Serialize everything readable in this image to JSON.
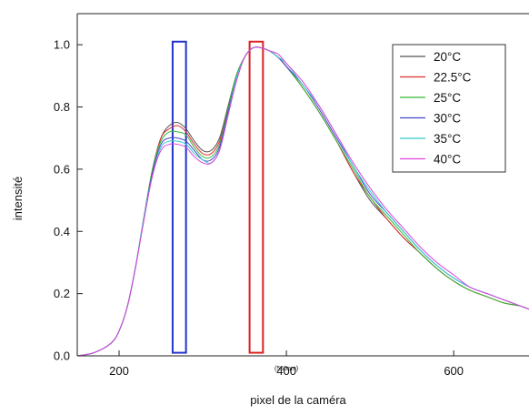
{
  "chart_data": {
    "type": "line",
    "title": "",
    "xlabel": "pixel de la caméra",
    "ylabel": "intensité",
    "xlim": [
      150,
      690
    ],
    "ylim": [
      0,
      1.1
    ],
    "xticks": [
      200,
      400,
      600
    ],
    "xtick_labels": [
      "200",
      "400",
      "600"
    ],
    "yticks": [
      0.0,
      0.2,
      0.4,
      0.6,
      0.8,
      1.0
    ],
    "ytick_labels": [
      "0.0",
      "0.2",
      "0.4",
      "0.6",
      "0.8",
      "1.0"
    ],
    "x_annotation": {
      "x": 400,
      "text": "(550nm)"
    },
    "grid": false,
    "legend_position": "top-right",
    "x": [
      150,
      170,
      190,
      200,
      210,
      220,
      230,
      240,
      250,
      260,
      270,
      280,
      290,
      300,
      310,
      320,
      330,
      340,
      350,
      360,
      370,
      380,
      390,
      400,
      420,
      440,
      460,
      480,
      500,
      520,
      540,
      560,
      580,
      600,
      620,
      640,
      660,
      680,
      690
    ],
    "series": [
      {
        "name": "20°C",
        "color": "#555555",
        "values": [
          0.0,
          0.01,
          0.04,
          0.08,
          0.16,
          0.29,
          0.45,
          0.6,
          0.7,
          0.74,
          0.75,
          0.73,
          0.69,
          0.66,
          0.66,
          0.7,
          0.8,
          0.9,
          0.96,
          0.99,
          0.99,
          0.98,
          0.96,
          0.93,
          0.86,
          0.78,
          0.69,
          0.59,
          0.5,
          0.44,
          0.38,
          0.33,
          0.28,
          0.24,
          0.21,
          0.19,
          0.17,
          0.16,
          0.15
        ]
      },
      {
        "name": "22.5°C",
        "color": "#e03030",
        "values": [
          0.0,
          0.01,
          0.04,
          0.08,
          0.16,
          0.29,
          0.45,
          0.6,
          0.7,
          0.73,
          0.74,
          0.72,
          0.68,
          0.65,
          0.65,
          0.69,
          0.79,
          0.9,
          0.96,
          0.99,
          0.99,
          0.98,
          0.96,
          0.93,
          0.86,
          0.78,
          0.69,
          0.59,
          0.51,
          0.44,
          0.38,
          0.33,
          0.28,
          0.24,
          0.21,
          0.19,
          0.17,
          0.16,
          0.15
        ]
      },
      {
        "name": "25°C",
        "color": "#33bb33",
        "values": [
          0.0,
          0.01,
          0.04,
          0.08,
          0.16,
          0.29,
          0.45,
          0.6,
          0.69,
          0.72,
          0.72,
          0.71,
          0.67,
          0.64,
          0.64,
          0.68,
          0.79,
          0.9,
          0.96,
          0.99,
          0.99,
          0.98,
          0.96,
          0.93,
          0.86,
          0.78,
          0.69,
          0.6,
          0.51,
          0.45,
          0.39,
          0.33,
          0.28,
          0.24,
          0.21,
          0.19,
          0.17,
          0.16,
          0.15
        ]
      },
      {
        "name": "30°C",
        "color": "#4444cc",
        "values": [
          0.0,
          0.01,
          0.04,
          0.08,
          0.16,
          0.29,
          0.45,
          0.59,
          0.68,
          0.7,
          0.7,
          0.69,
          0.66,
          0.63,
          0.63,
          0.67,
          0.78,
          0.89,
          0.96,
          0.99,
          0.99,
          0.98,
          0.96,
          0.93,
          0.87,
          0.79,
          0.7,
          0.61,
          0.52,
          0.46,
          0.4,
          0.34,
          0.29,
          0.25,
          0.22,
          0.2,
          0.18,
          0.16,
          0.15
        ]
      },
      {
        "name": "35°C",
        "color": "#33cccc",
        "values": [
          0.0,
          0.01,
          0.04,
          0.08,
          0.16,
          0.29,
          0.45,
          0.58,
          0.67,
          0.69,
          0.69,
          0.68,
          0.65,
          0.63,
          0.62,
          0.66,
          0.77,
          0.89,
          0.96,
          0.99,
          0.99,
          0.98,
          0.96,
          0.94,
          0.87,
          0.8,
          0.71,
          0.61,
          0.53,
          0.46,
          0.4,
          0.34,
          0.29,
          0.25,
          0.22,
          0.2,
          0.18,
          0.16,
          0.15
        ]
      },
      {
        "name": "40°C",
        "color": "#dd44dd",
        "values": [
          0.0,
          0.01,
          0.04,
          0.08,
          0.16,
          0.29,
          0.44,
          0.58,
          0.66,
          0.68,
          0.68,
          0.67,
          0.64,
          0.62,
          0.62,
          0.66,
          0.77,
          0.88,
          0.96,
          0.99,
          0.99,
          0.98,
          0.97,
          0.94,
          0.88,
          0.8,
          0.71,
          0.62,
          0.54,
          0.47,
          0.41,
          0.35,
          0.3,
          0.26,
          0.22,
          0.2,
          0.18,
          0.16,
          0.15
        ]
      }
    ],
    "highlight_boxes": [
      {
        "name": "blue-box",
        "color": "#2233cc",
        "x_range": [
          264,
          280
        ],
        "y_range": [
          0.01,
          1.01
        ]
      },
      {
        "name": "red-box",
        "color": "#dd2222",
        "x_range": [
          356,
          372
        ],
        "y_range": [
          0.01,
          1.01
        ]
      }
    ]
  }
}
